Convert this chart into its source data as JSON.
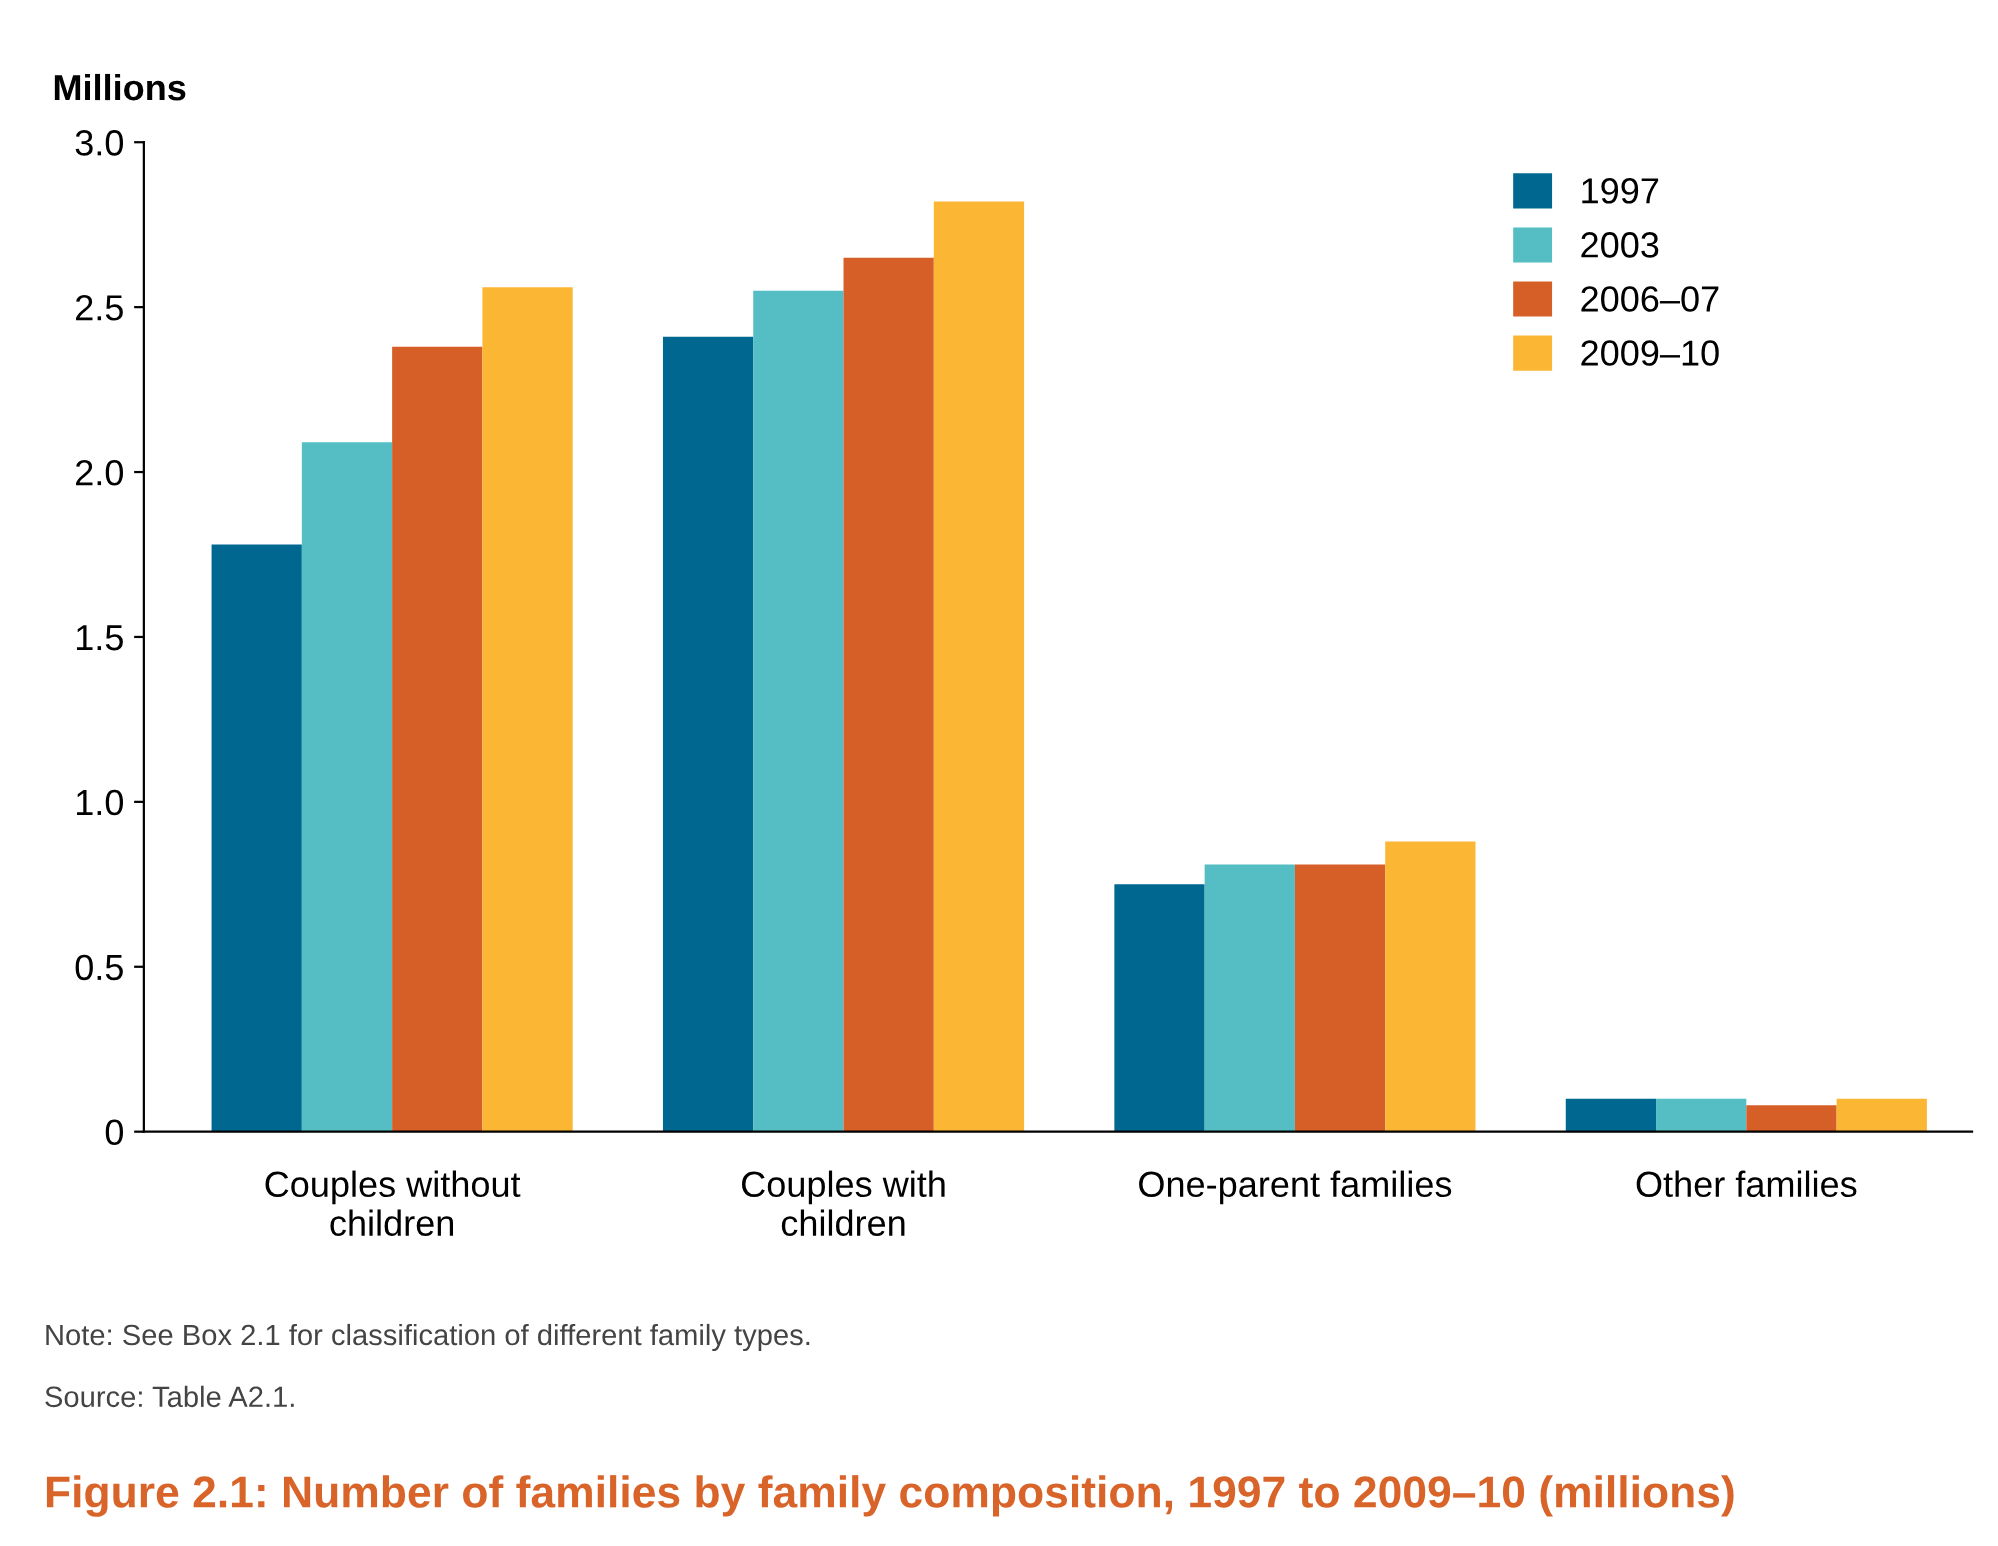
{
  "chart_data": {
    "type": "bar",
    "title": "Figure 2.1: Number of families by family composition, 1997 to 2009–10 (millions)",
    "ylabel": "Millions",
    "categories": [
      "Couples without\nchildren",
      "Couples with\nchildren",
      "One-parent families",
      "Other families"
    ],
    "series": [
      {
        "name": "1997",
        "color": "#006890",
        "values": [
          1.78,
          2.41,
          0.75,
          0.1
        ]
      },
      {
        "name": "2003",
        "color": "#55bec4",
        "values": [
          2.09,
          2.55,
          0.81,
          0.1
        ]
      },
      {
        "name": "2006–07",
        "color": "#d55f27",
        "values": [
          2.38,
          2.65,
          0.81,
          0.08
        ]
      },
      {
        "name": "2009–10",
        "color": "#fbb634",
        "values": [
          2.56,
          2.82,
          0.88,
          0.1
        ]
      }
    ],
    "ylim": [
      0,
      3.0
    ],
    "yticks": [
      {
        "value": 0,
        "label": "0"
      },
      {
        "value": 0.5,
        "label": "0.5"
      },
      {
        "value": 1.0,
        "label": "1.0"
      },
      {
        "value": 1.5,
        "label": "1.5"
      },
      {
        "value": 2.0,
        "label": "2.0"
      },
      {
        "value": 2.5,
        "label": "2.5"
      },
      {
        "value": 3.0,
        "label": "3.0"
      }
    ],
    "grid": false,
    "legend": "top right",
    "annotations": [
      "Note: See Box 2.1 for classification of different family types.",
      "Source: Table A2.1."
    ]
  }
}
